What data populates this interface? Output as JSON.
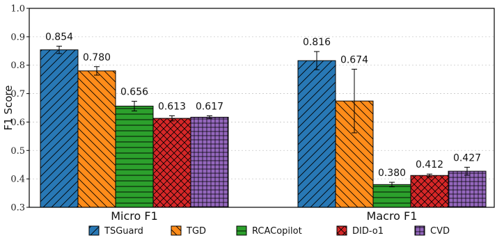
{
  "chart_data": {
    "type": "bar",
    "ylabel": "F1 Score",
    "ylim": [
      0.3,
      1.0
    ],
    "yticks": [
      0.3,
      0.4,
      0.5,
      0.6,
      0.7,
      0.8,
      0.9,
      1.0
    ],
    "categories": [
      "Micro F1",
      "Macro F1"
    ],
    "legend_position": "bottom",
    "series": [
      {
        "name": "TSGuard",
        "values": [
          0.854,
          0.816
        ],
        "errors": [
          0.013,
          0.032
        ],
        "labels": [
          "0.854",
          "0.816"
        ],
        "color": "#2878b5",
        "hatch": "diagonal-forward"
      },
      {
        "name": "TGD",
        "values": [
          0.78,
          0.674
        ],
        "errors": [
          0.015,
          0.112
        ],
        "labels": [
          "0.780",
          "0.674"
        ],
        "color": "#ff8c1a",
        "hatch": "diagonal-back"
      },
      {
        "name": "RCACopilot",
        "values": [
          0.656,
          0.38
        ],
        "errors": [
          0.017,
          0.008
        ],
        "labels": [
          "0.656",
          "0.380"
        ],
        "color": "#2ca02c",
        "hatch": "horizontal"
      },
      {
        "name": "DID-o1",
        "values": [
          0.613,
          0.412
        ],
        "errors": [
          0.009,
          0.005
        ],
        "labels": [
          "0.613",
          "0.412"
        ],
        "color": "#d62728",
        "hatch": "cross"
      },
      {
        "name": "CVD",
        "values": [
          0.617,
          0.427
        ],
        "errors": [
          0.005,
          0.014
        ],
        "labels": [
          "0.617",
          "0.427"
        ],
        "color": "#9467bd",
        "hatch": "grid"
      }
    ]
  }
}
